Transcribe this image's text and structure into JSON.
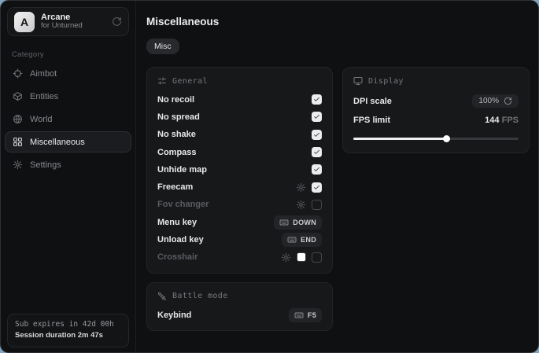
{
  "sidebar": {
    "brand": {
      "logo_letter": "A",
      "name": "Arcane",
      "subtitle": "for Unturned"
    },
    "category_label": "Category",
    "items": [
      {
        "label": "Aimbot",
        "icon": "crosshair-icon",
        "active": false
      },
      {
        "label": "Entities",
        "icon": "entities-icon",
        "active": false
      },
      {
        "label": "World",
        "icon": "globe-icon",
        "active": false
      },
      {
        "label": "Miscellaneous",
        "icon": "grid-icon",
        "active": true
      },
      {
        "label": "Settings",
        "icon": "gear-icon",
        "active": false
      }
    ],
    "status": {
      "line1": "Sub expires in 42d 00h",
      "line2": "Session duration 2m 47s"
    }
  },
  "main": {
    "title": "Miscellaneous",
    "tabs": [
      {
        "label": "Misc",
        "active": true
      }
    ],
    "general_card": {
      "title": "General",
      "icon": "sliders-icon",
      "rows": [
        {
          "label": "No recoil",
          "type": "checkbox",
          "checked": true,
          "enabled": true,
          "gear": false
        },
        {
          "label": "No spread",
          "type": "checkbox",
          "checked": true,
          "enabled": true,
          "gear": false
        },
        {
          "label": "No shake",
          "type": "checkbox",
          "checked": true,
          "enabled": true,
          "gear": false
        },
        {
          "label": "Compass",
          "type": "checkbox",
          "checked": true,
          "enabled": true,
          "gear": false
        },
        {
          "label": "Unhide map",
          "type": "checkbox",
          "checked": true,
          "enabled": true,
          "gear": false
        },
        {
          "label": "Freecam",
          "type": "checkbox",
          "checked": true,
          "enabled": true,
          "gear": true
        },
        {
          "label": "Fov changer",
          "type": "checkbox",
          "checked": false,
          "enabled": false,
          "gear": true
        },
        {
          "label": "Menu key",
          "type": "keybind",
          "key": "DOWN"
        },
        {
          "label": "Unload key",
          "type": "keybind",
          "key": "END"
        },
        {
          "label": "Crosshair",
          "type": "checkbox",
          "checked": false,
          "enabled": false,
          "gear": true,
          "swatch": "#ffffff"
        }
      ]
    },
    "battle_card": {
      "title": "Battle mode",
      "icon": "sword-icon",
      "rows": [
        {
          "label": "Keybind",
          "type": "keybind",
          "key": "F5"
        }
      ]
    },
    "display_card": {
      "title": "Display",
      "icon": "monitor-icon",
      "dpi_row": {
        "label": "DPI scale",
        "value": "100%"
      },
      "fps_row": {
        "label": "FPS limit",
        "value": "144",
        "unit": "FPS",
        "slider_percent": 56
      }
    }
  },
  "colors": {
    "window_bg": "#0f1012",
    "card_bg": "#17181a",
    "accent_text": "#ececee",
    "dim_text": "#595c61",
    "checkbox_bg": "#eceded",
    "slider_fill": "#efeff0",
    "crosshair_swatch": "#ffffff"
  }
}
